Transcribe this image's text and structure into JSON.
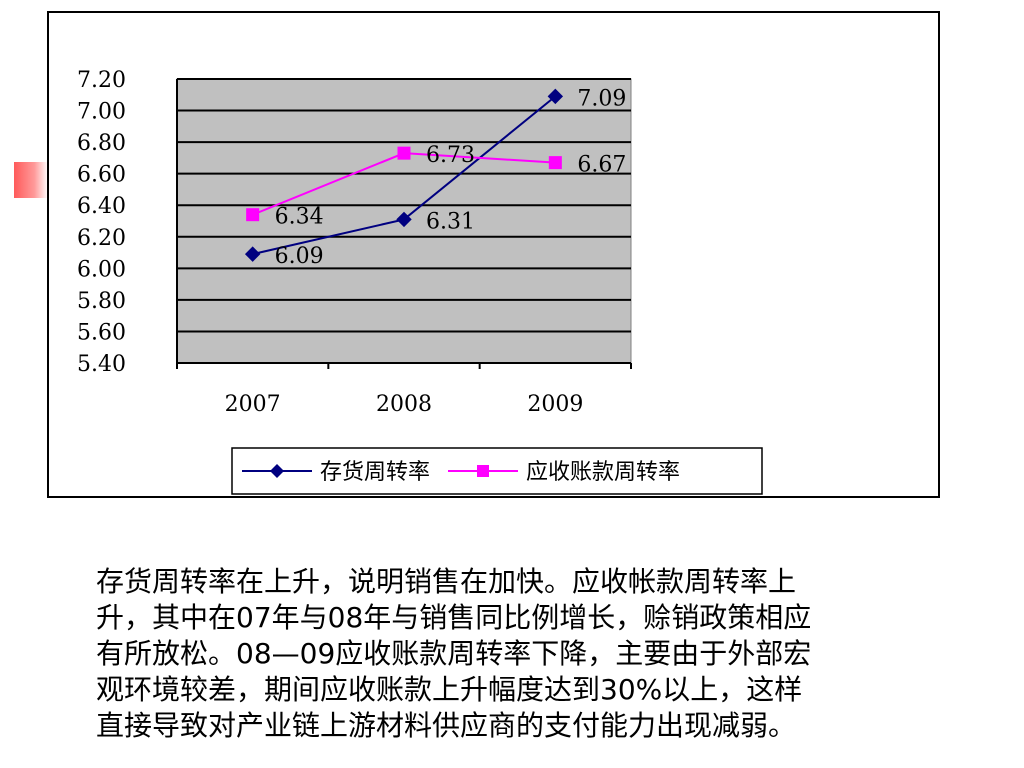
{
  "chart_data": {
    "type": "line",
    "categories": [
      "2007",
      "2008",
      "2009"
    ],
    "series": [
      {
        "name": "存货周转率",
        "values": [
          6.09,
          6.31,
          7.09
        ],
        "color": "#000080",
        "marker": "diamond"
      },
      {
        "name": "应收账款周转率",
        "values": [
          6.34,
          6.73,
          6.67
        ],
        "color": "#ff00ff",
        "marker": "square"
      }
    ],
    "y_ticks": [
      "7.20",
      "7.00",
      "6.80",
      "6.60",
      "6.40",
      "6.20",
      "6.00",
      "5.80",
      "5.60",
      "5.40"
    ],
    "ylim": [
      5.4,
      7.2
    ],
    "data_labels": [
      [
        "6.09",
        "6.31",
        "7.09"
      ],
      [
        "6.34",
        "6.73",
        "6.67"
      ]
    ],
    "grid": true,
    "plot_background": "#c0c0c0",
    "legend_position": "bottom"
  },
  "description": {
    "lines": [
      "存货周转率在上升，说明销售在加快。应收帐款周转率上",
      "升，其中在07年与08年与销售同比例增长，赊销政策相应",
      "有所放松。08—09应收账款周转率下降，主要由于外部宏",
      "观环境较差，期间应收账款上升幅度达到30%以上，这样",
      "直接导致对产业链上游材料供应商的支付能力出现减弱。"
    ]
  }
}
